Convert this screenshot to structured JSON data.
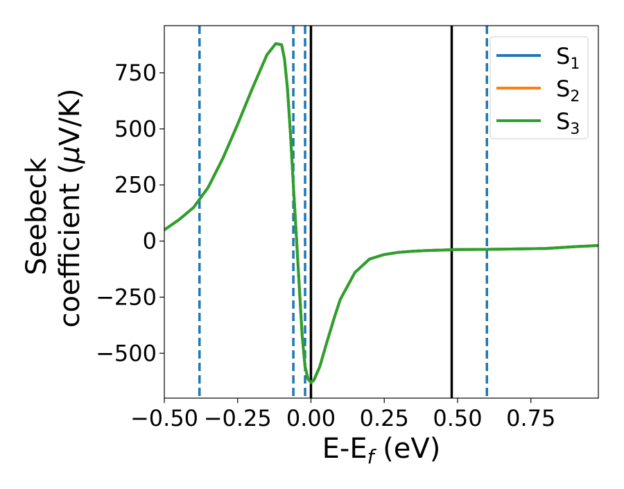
{
  "chart_data": {
    "type": "line",
    "xlabel": "E-E",
    "xlabel_subscript": "f",
    "xlabel_unit": " (eV)",
    "ylabel_line1": "Seebeck",
    "ylabel_line2_prefix": "coefficient  (",
    "ylabel_mu": "μ",
    "ylabel_line2_suffix": "V/K)",
    "xlim": [
      -0.5,
      0.98
    ],
    "ylim": [
      -700,
      960
    ],
    "xticks": [
      -0.5,
      -0.25,
      0.0,
      0.25,
      0.5,
      0.75
    ],
    "xtick_labels": [
      "−0.50",
      "−0.25",
      "0.00",
      "0.25",
      "0.50",
      "0.75"
    ],
    "yticks": [
      -500,
      -250,
      0,
      250,
      500,
      750
    ],
    "ytick_labels": [
      "−500",
      "−250",
      "0",
      "250",
      "500",
      "750"
    ],
    "grid": false,
    "legend_position": "top-right",
    "x": [
      -0.5,
      -0.45,
      -0.4,
      -0.35,
      -0.3,
      -0.25,
      -0.2,
      -0.15,
      -0.12,
      -0.1,
      -0.09,
      -0.08,
      -0.07,
      -0.06,
      -0.05,
      -0.04,
      -0.03,
      -0.02,
      -0.01,
      0.0,
      0.01,
      0.03,
      0.05,
      0.08,
      0.1,
      0.15,
      0.2,
      0.25,
      0.3,
      0.35,
      0.4,
      0.5,
      0.6,
      0.7,
      0.8,
      0.9,
      0.98
    ],
    "series": [
      {
        "name": "S",
        "subscript": "1",
        "color": "#1f77b4",
        "y": [
          50,
          95,
          150,
          240,
          370,
          520,
          680,
          830,
          880,
          875,
          810,
          680,
          480,
          250,
          30,
          -200,
          -420,
          -560,
          -615,
          -630,
          -620,
          -560,
          -470,
          -340,
          -260,
          -140,
          -80,
          -60,
          -50,
          -45,
          -42,
          -38,
          -37,
          -35,
          -33,
          -25,
          -20
        ]
      },
      {
        "name": "S",
        "subscript": "2",
        "color": "#ff7f0e",
        "y": [
          50,
          95,
          150,
          240,
          370,
          520,
          680,
          830,
          880,
          875,
          810,
          680,
          480,
          250,
          30,
          -200,
          -420,
          -560,
          -615,
          -630,
          -620,
          -560,
          -470,
          -340,
          -260,
          -140,
          -80,
          -60,
          -50,
          -45,
          -42,
          -38,
          -37,
          -35,
          -33,
          -25,
          -20
        ]
      },
      {
        "name": "S",
        "subscript": "3",
        "color": "#2ca02c",
        "y": [
          50,
          95,
          150,
          240,
          370,
          520,
          680,
          830,
          880,
          875,
          810,
          680,
          480,
          250,
          30,
          -200,
          -420,
          -560,
          -615,
          -630,
          -620,
          -560,
          -470,
          -340,
          -260,
          -140,
          -80,
          -60,
          -50,
          -45,
          -42,
          -38,
          -37,
          -35,
          -33,
          -25,
          -20
        ]
      }
    ],
    "vlines_dashed": {
      "color": "#1f77b4",
      "x": [
        -0.38,
        -0.06,
        -0.02,
        0.6
      ]
    },
    "vlines_solid": {
      "color": "#000000",
      "x": [
        0.0,
        0.48
      ]
    }
  }
}
